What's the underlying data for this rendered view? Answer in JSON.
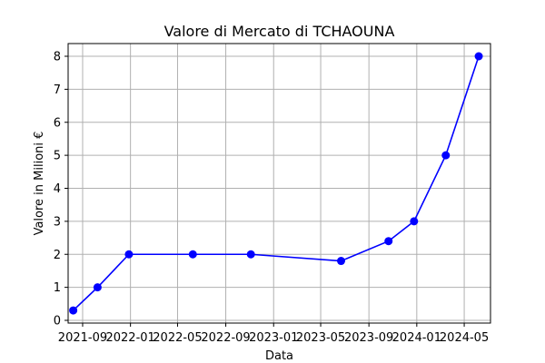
{
  "chart_data": {
    "type": "line",
    "title": "Valore di Mercato di TCHAOUNA",
    "xlabel": "Data",
    "ylabel": "Valore in Milioni €",
    "x_ticks": [
      "2021-09",
      "2022-01",
      "2022-05",
      "2022-09",
      "2023-01",
      "2023-05",
      "2023-09",
      "2024-01",
      "2024-05"
    ],
    "y_ticks": [
      "0",
      "1",
      "2",
      "3",
      "4",
      "5",
      "6",
      "7",
      "8"
    ],
    "ylim": [
      0,
      8
    ],
    "xlim": [
      "2021-07-26",
      "2024-07-07"
    ],
    "grid": true,
    "series": [
      {
        "color": "#0000ff",
        "marker": "circle",
        "x": [
          "2021-08-08",
          "2021-10-09",
          "2021-12-28",
          "2022-06-09",
          "2022-11-04",
          "2023-06-22",
          "2023-10-21",
          "2023-12-25",
          "2024-03-15",
          "2024-06-07"
        ],
        "values": [
          0.3,
          1,
          2,
          2,
          2,
          1.8,
          2.4,
          3,
          5,
          8
        ]
      }
    ]
  }
}
